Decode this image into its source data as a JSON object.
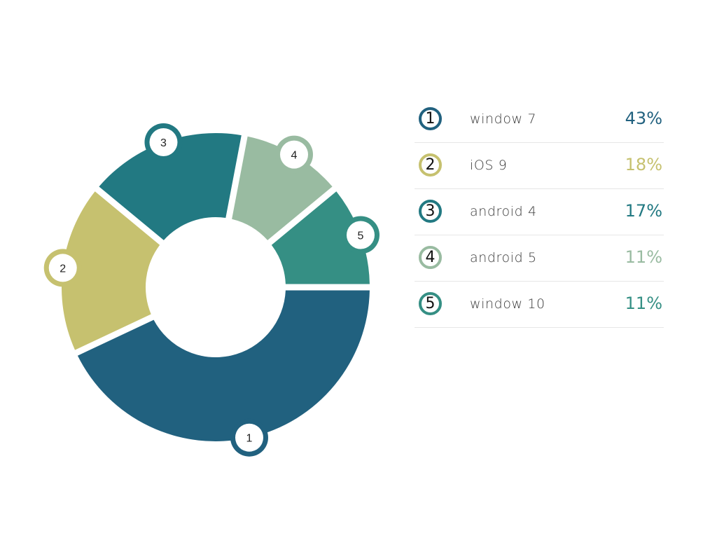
{
  "chart_data": {
    "type": "pie",
    "donut": true,
    "start_angle_deg": 0,
    "direction": "clockwise",
    "slices": [
      {
        "marker": "1",
        "label": "window 7",
        "value": 43,
        "value_label": "43%",
        "color": "#21617f"
      },
      {
        "marker": "2",
        "label": "iOS 9",
        "value": 18,
        "value_label": "18%",
        "color": "#c6c16f"
      },
      {
        "marker": "3",
        "label": "android 4",
        "value": 17,
        "value_label": "17%",
        "color": "#227982"
      },
      {
        "marker": "4",
        "label": "android 5",
        "value": 11,
        "value_label": "11%",
        "color": "#99bba1"
      },
      {
        "marker": "5",
        "label": "window 10",
        "value": 11,
        "value_label": "11%",
        "color": "#358f84"
      }
    ],
    "legend_position": "right"
  }
}
